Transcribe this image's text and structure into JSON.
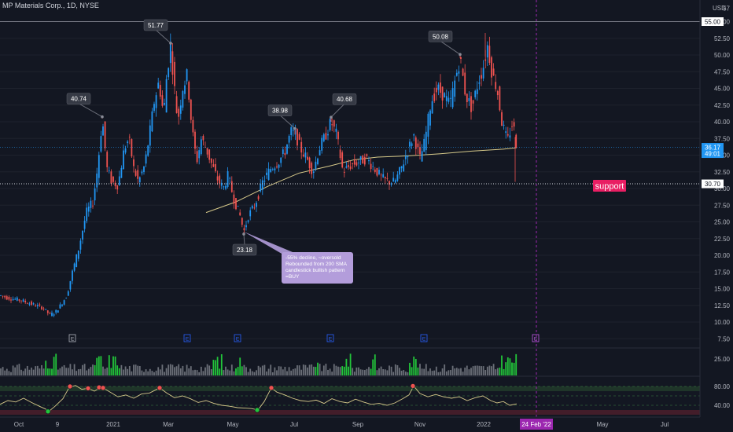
{
  "header": {
    "title": "MP Materials Corp., 1D, NYSE"
  },
  "colors": {
    "up": "#2196f3",
    "down": "#ef5350",
    "sma": "#d6c98a",
    "rsi": "#d6c98a",
    "background": "#131722",
    "label_bg": "#363a45",
    "volume_highlight": "#22c53a",
    "volume_normal": "#6b6f78",
    "support": "#e91e63",
    "note_bg": "#b39ddb",
    "date_marker": "#9c27b0"
  },
  "chart_data": {
    "type": "candlestick",
    "title": "MP Materials Corp., 1D, NYSE",
    "price_axis": {
      "unit_label": "USD",
      "ticks": [
        "57",
        "55.00",
        "52.50",
        "50.00",
        "47.50",
        "45.00",
        "42.50",
        "40.00",
        "37.50",
        "35.00",
        "32.50",
        "30.00",
        "27.50",
        "25.00",
        "22.50",
        "20.00",
        "17.50",
        "15.00",
        "12.50",
        "10.00",
        "7.50"
      ],
      "ylim": [
        7.5,
        57
      ],
      "current_price": "36.17",
      "countdown": "49:01",
      "lines": [
        {
          "price": 55.0,
          "label": "55.00",
          "style": "solid"
        },
        {
          "price": 30.7,
          "label": "30.70",
          "style": "dotted"
        }
      ]
    },
    "time_axis": {
      "ticks": [
        "Oct",
        "9",
        "2021",
        "Mar",
        "May",
        "Jul",
        "Sep",
        "Nov",
        "2022",
        "24 Feb '22",
        "May",
        "Jul"
      ],
      "marker_date": "24 Feb '22"
    },
    "swing_labels": [
      {
        "value": "40.74",
        "price": 40.74,
        "t": 130
      },
      {
        "value": "51.77",
        "price": 51.77,
        "t": 217
      },
      {
        "value": "23.18",
        "price": 23.18,
        "t": 310
      },
      {
        "value": "38.98",
        "price": 38.98,
        "t": 375
      },
      {
        "value": "40.68",
        "price": 40.68,
        "t": 421
      },
      {
        "value": "50.08",
        "price": 50.08,
        "t": 585
      }
    ],
    "annotations": {
      "support": "support",
      "note": [
        "-55% decline, ~oversold",
        "Rebounded from 200 SMA",
        "candlestick bullish pattern",
        "=BUY"
      ]
    },
    "earnings": [
      "E",
      "E",
      "E",
      "E",
      "E",
      "E"
    ],
    "sma200": [
      [
        262,
        26.4
      ],
      [
        300,
        28.0
      ],
      [
        340,
        30.3
      ],
      [
        380,
        32.3
      ],
      [
        420,
        33.4
      ],
      [
        450,
        34.3
      ],
      [
        480,
        34.7
      ],
      [
        520,
        34.9
      ],
      [
        560,
        35.2
      ],
      [
        600,
        35.6
      ],
      [
        640,
        35.9
      ],
      [
        657,
        36.1
      ]
    ],
    "price_path": [
      [
        0,
        14.0
      ],
      [
        10,
        13.6
      ],
      [
        25,
        13.3
      ],
      [
        40,
        12.7
      ],
      [
        55,
        12.1
      ],
      [
        63,
        11.1
      ],
      [
        70,
        11.4
      ],
      [
        78,
        12.7
      ],
      [
        85,
        14.0
      ],
      [
        92,
        17.5
      ],
      [
        100,
        21.0
      ],
      [
        110,
        26.5
      ],
      [
        118,
        28.0
      ],
      [
        124,
        33.0
      ],
      [
        130,
        40.5
      ],
      [
        136,
        33.0
      ],
      [
        142,
        31.0
      ],
      [
        150,
        30.5
      ],
      [
        158,
        36.0
      ],
      [
        164,
        37.5
      ],
      [
        170,
        33.0
      ],
      [
        176,
        31.0
      ],
      [
        184,
        33.5
      ],
      [
        190,
        38.0
      ],
      [
        196,
        43.0
      ],
      [
        202,
        46.0
      ],
      [
        208,
        41.0
      ],
      [
        212,
        47.0
      ],
      [
        217,
        51.5
      ],
      [
        221,
        46.0
      ],
      [
        226,
        40.0
      ],
      [
        232,
        45.0
      ],
      [
        238,
        47.0
      ],
      [
        244,
        39.0
      ],
      [
        250,
        34.0
      ],
      [
        256,
        37.5
      ],
      [
        262,
        36.0
      ],
      [
        268,
        34.0
      ],
      [
        276,
        31.5
      ],
      [
        284,
        30.0
      ],
      [
        290,
        32.0
      ],
      [
        297,
        28.5
      ],
      [
        305,
        26.0
      ],
      [
        310,
        23.5
      ],
      [
        316,
        26.0
      ],
      [
        324,
        27.5
      ],
      [
        334,
        31.0
      ],
      [
        344,
        33.0
      ],
      [
        354,
        34.0
      ],
      [
        362,
        35.5
      ],
      [
        370,
        38.5
      ],
      [
        376,
        38.0
      ],
      [
        382,
        36.0
      ],
      [
        390,
        34.5
      ],
      [
        398,
        32.5
      ],
      [
        406,
        36.0
      ],
      [
        414,
        38.0
      ],
      [
        421,
        40.0
      ],
      [
        428,
        38.0
      ],
      [
        436,
        32.5
      ],
      [
        446,
        33.5
      ],
      [
        456,
        34.0
      ],
      [
        466,
        34.5
      ],
      [
        476,
        33.0
      ],
      [
        486,
        31.5
      ],
      [
        494,
        31.0
      ],
      [
        502,
        31.0
      ],
      [
        510,
        33.0
      ],
      [
        518,
        35.5
      ],
      [
        526,
        38.0
      ],
      [
        534,
        34.5
      ],
      [
        540,
        37.0
      ],
      [
        548,
        43.0
      ],
      [
        556,
        45.0
      ],
      [
        564,
        44.0
      ],
      [
        572,
        42.5
      ],
      [
        580,
        47.0
      ],
      [
        585,
        49.5
      ],
      [
        592,
        44.0
      ],
      [
        600,
        42.0
      ],
      [
        608,
        46.0
      ],
      [
        614,
        48.0
      ],
      [
        620,
        51.5
      ],
      [
        626,
        47.0
      ],
      [
        632,
        45.0
      ],
      [
        638,
        40.0
      ],
      [
        645,
        37.0
      ],
      [
        652,
        40.0
      ],
      [
        657,
        36.2
      ]
    ],
    "rsi": {
      "ticks": [
        "80.00",
        "40.00"
      ],
      "ylim": [
        20,
        90
      ],
      "values": [
        [
          0,
          42
        ],
        [
          10,
          50
        ],
        [
          20,
          47
        ],
        [
          30,
          55
        ],
        [
          40,
          46
        ],
        [
          50,
          38
        ],
        [
          58,
          32
        ],
        [
          62,
          27
        ],
        [
          70,
          38
        ],
        [
          80,
          54
        ],
        [
          88,
          78
        ],
        [
          96,
          82
        ],
        [
          104,
          74
        ],
        [
          112,
          76
        ],
        [
          120,
          70
        ],
        [
          128,
          78
        ],
        [
          134,
          74
        ],
        [
          142,
          66
        ],
        [
          150,
          58
        ],
        [
          160,
          62
        ],
        [
          170,
          55
        ],
        [
          180,
          64
        ],
        [
          190,
          66
        ],
        [
          203,
          77
        ],
        [
          212,
          66
        ],
        [
          222,
          56
        ],
        [
          232,
          60
        ],
        [
          242,
          54
        ],
        [
          252,
          46
        ],
        [
          262,
          50
        ],
        [
          272,
          44
        ],
        [
          282,
          40
        ],
        [
          292,
          38
        ],
        [
          302,
          35
        ],
        [
          312,
          34
        ],
        [
          320,
          33
        ],
        [
          328,
          30
        ],
        [
          336,
          48
        ],
        [
          345,
          77
        ],
        [
          352,
          68
        ],
        [
          362,
          62
        ],
        [
          372,
          55
        ],
        [
          382,
          50
        ],
        [
          392,
          48
        ],
        [
          402,
          51
        ],
        [
          412,
          44
        ],
        [
          422,
          54
        ],
        [
          432,
          48
        ],
        [
          442,
          45
        ],
        [
          452,
          53
        ],
        [
          462,
          47
        ],
        [
          472,
          42
        ],
        [
          482,
          44
        ],
        [
          492,
          40
        ],
        [
          502,
          45
        ],
        [
          512,
          54
        ],
        [
          520,
          62
        ],
        [
          526,
          81
        ],
        [
          534,
          65
        ],
        [
          544,
          58
        ],
        [
          554,
          63
        ],
        [
          564,
          58
        ],
        [
          574,
          55
        ],
        [
          584,
          58
        ],
        [
          594,
          50
        ],
        [
          604,
          56
        ],
        [
          614,
          60
        ],
        [
          624,
          50
        ],
        [
          632,
          45
        ],
        [
          640,
          48
        ],
        [
          648,
          40
        ],
        [
          657,
          43
        ]
      ],
      "oversold_markers": [
        [
          61,
          27
        ],
        [
          327,
          30
        ]
      ],
      "overbought_markers": [
        [
          89,
          80
        ],
        [
          112,
          76
        ],
        [
          126,
          78
        ],
        [
          131,
          77
        ],
        [
          203,
          77
        ],
        [
          345,
          77
        ],
        [
          525,
          81
        ]
      ]
    },
    "volume": {
      "ticks": [
        "25.00"
      ],
      "highlight_ranges": [
        [
          57,
          72
        ],
        [
          120,
          130
        ],
        [
          137,
          152
        ],
        [
          270,
          282
        ],
        [
          298,
          310
        ],
        [
          400,
          406
        ],
        [
          434,
          448
        ],
        [
          470,
          478
        ],
        [
          520,
          532
        ],
        [
          634,
          657
        ]
      ]
    }
  }
}
